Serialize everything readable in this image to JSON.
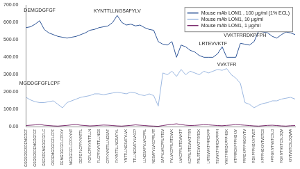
{
  "chart_data": {
    "type": "line",
    "categories": [
      "GSGSGSGSDEMGDGF",
      null,
      "GSGSGSDEMGDGFGF",
      null,
      "GSGSDEMGDGFGFLC",
      null,
      "GSDEMGDGFGFLCPF",
      null,
      "DEMGDGFGFLCPFKY",
      null,
      "MGDGFGFLCPFKYNT",
      null,
      "DGFGFLCPFKYNTTL",
      null,
      "FGFLCPFKYNTTLLN",
      null,
      "FLCPFKYNTTLLNGS",
      null,
      "CPFKYNTTLLNGSAF",
      null,
      "FKYNTTLLNGSAFYL",
      null,
      "YNTTLLNGSAFYLVK",
      null,
      "TTLLNGSAFYLVKCP",
      null,
      "LLNGSAFYLVKCPRL",
      null,
      "NGSAFYLVKCPRLRT",
      null,
      "SAFYLVKCPRLRTEV",
      null,
      "FYLVKCPRLRTEVVK",
      null,
      "LVKCPRLRTEVVKTF",
      null,
      "KCPRLRTEVVKTFRR",
      null,
      "PRLRTEVVKTFRRDK",
      null,
      "LRTEVVKTFRRDKPF",
      null,
      "TEVVKTFRRDKPFPH",
      null,
      "VVKTFRRDKPFPHGK",
      null,
      "KTFRRDKPFPHGKIY",
      null,
      "FRRDKPFPHGKIYTV",
      null,
      "RDKPFPHGKIYTVET",
      null,
      "KPFPHGKIYTVETCS",
      null,
      "FPHGKIYTVETCSLD",
      null,
      "HGKIYTVETCSLDQV",
      null,
      "KIYTVETCSLDQVAA",
      null
    ],
    "series": [
      {
        "name": "Mouse mAb LOM1 , 100 µg/ml (1% ECL)",
        "color": "#2e5597",
        "values": [
          570,
          575,
          590,
          610,
          560,
          540,
          530,
          520,
          515,
          510,
          515,
          520,
          530,
          540,
          555,
          560,
          570,
          575,
          580,
          600,
          640,
          600,
          585,
          590,
          580,
          585,
          570,
          560,
          555,
          490,
          475,
          470,
          490,
          400,
          470,
          460,
          440,
          430,
          410,
          400,
          400,
          400,
          420,
          460,
          400,
          400,
          400,
          480,
          475,
          470,
          490,
          550,
          545,
          540,
          520,
          510,
          530,
          545,
          540,
          530
        ]
      },
      {
        "name": "Mouse mAb LOM1, 10 µg/ml",
        "color": "#9bb7e0",
        "values": [
          170,
          155,
          145,
          140,
          140,
          145,
          150,
          130,
          110,
          140,
          150,
          160,
          170,
          175,
          180,
          190,
          190,
          185,
          190,
          195,
          200,
          195,
          190,
          200,
          195,
          185,
          180,
          190,
          180,
          120,
          310,
          300,
          320,
          290,
          330,
          300,
          320,
          310,
          300,
          320,
          310,
          320,
          330,
          325,
          335,
          300,
          280,
          250,
          140,
          130,
          110,
          125,
          135,
          140,
          150,
          150,
          160,
          165,
          170,
          160
        ]
      },
      {
        "name": "Mouse mAb LOM1, 1 µg/ml",
        "color": "#7b2c6e",
        "values": [
          8,
          10,
          12,
          15,
          10,
          8,
          6,
          5,
          7,
          9,
          12,
          14,
          10,
          8,
          6,
          7,
          9,
          11,
          10,
          8,
          6,
          5,
          7,
          9,
          12,
          10,
          8,
          6,
          5,
          4,
          8,
          12,
          15,
          18,
          14,
          10,
          8,
          9,
          11,
          13,
          12,
          10,
          8,
          7,
          9,
          11,
          14,
          12,
          10,
          8,
          6,
          5,
          7,
          9,
          10,
          8,
          6,
          5,
          7,
          8
        ]
      }
    ],
    "annotations": [
      {
        "text": "DEMGDGFGF",
        "x": 3,
        "y": 655
      },
      {
        "text": "MGDDGFGFLCPF",
        "x": 3,
        "y": 235
      },
      {
        "text": "KYNTTLLNGSAFYLV",
        "x": 20,
        "y": 650
      },
      {
        "text": "LRTEVVKTF",
        "x": 41,
        "y": 462
      },
      {
        "text": "VVKTFRRDKPFPH",
        "x": 48,
        "y": 512
      },
      {
        "text": "VVKTFR",
        "x": 44,
        "y": 345
      }
    ],
    "ylim": [
      0,
      700
    ],
    "yticks": [
      {
        "value": 0,
        "label": "0.00"
      },
      {
        "value": 100,
        "label": "100.00"
      },
      {
        "value": 200,
        "label": "200.00"
      },
      {
        "value": 300,
        "label": "300.00"
      },
      {
        "value": 400,
        "label": "400.00"
      },
      {
        "value": 500,
        "label": "500.00"
      },
      {
        "value": 600,
        "label": "600.00"
      },
      {
        "value": 700,
        "label": "700.00"
      }
    ],
    "grid": false,
    "legend": "upper right"
  }
}
